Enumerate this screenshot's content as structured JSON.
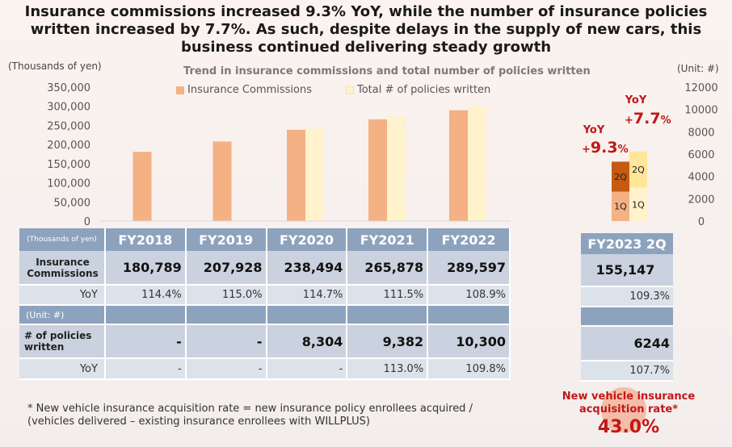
{
  "title_lines": [
    "Insurance commissions increased 9.3% YoY, while the number of insurance policies",
    "written increased by 7.7%. As such, despite delays in the supply of new cars, this",
    "business continued delivering steady growth"
  ],
  "left_axis_unit": "(Thousands of yen)",
  "right_axis_unit": "(Unit: #)",
  "chart_data": {
    "type": "bar",
    "title": "Trend in insurance commissions and total number of policies written",
    "categories": [
      "FY2018",
      "FY2019",
      "FY2020",
      "FY2021",
      "FY2022"
    ],
    "series": [
      {
        "name": "Insurance Commissions",
        "axis": "left",
        "color": "#f4b183",
        "values": [
          180789,
          207928,
          238494,
          265878,
          289597
        ]
      },
      {
        "name": "Total # of policies written",
        "axis": "right",
        "color": "#fff2cc",
        "values": [
          null,
          null,
          8304,
          9382,
          10300
        ]
      }
    ],
    "left_ylim": [
      0,
      350000
    ],
    "left_ticks": [
      "350,000",
      "300,000",
      "250,000",
      "200,000",
      "150,000",
      "100,000",
      "50,000",
      "0"
    ],
    "right_ylim": [
      0,
      12000
    ],
    "right_ticks": [
      "12000",
      "10000",
      "8000",
      "6000",
      "4000",
      "2000",
      "0"
    ],
    "fy2023_2q": {
      "commissions_stack": [
        {
          "label": "1Q",
          "value": 77000,
          "color": "#f4b183"
        },
        {
          "label": "2Q",
          "value": 78147,
          "color": "#c55a11"
        }
      ],
      "policies_stack": [
        {
          "label": "1Q",
          "value": 3000,
          "color": "#fff2cc"
        },
        {
          "label": "2Q",
          "value": 3244,
          "color": "#ffe699"
        }
      ],
      "yoy_commissions": "9.3",
      "yoy_policies": "7.7"
    }
  },
  "yoy_label": "YoY",
  "yoy_prefix": "+",
  "pct": "%",
  "table": {
    "header_unit": "(Thousands of yen)",
    "years": [
      "FY2018",
      "FY2019",
      "FY2020",
      "FY2021",
      "FY2022"
    ],
    "commissions_label": "Insurance Commissions",
    "commissions": [
      "180,789",
      "207,928",
      "238,494",
      "265,878",
      "289,597"
    ],
    "yoy_label": "YoY",
    "commissions_yoy": [
      "114.4%",
      "115.0%",
      "114.7%",
      "111.5%",
      "108.9%"
    ],
    "unit_row": "(Unit: #)",
    "policies_label": "# of policies written",
    "policies": [
      "-",
      "-",
      "8,304",
      "9,382",
      "10,300"
    ],
    "policies_yoy": [
      "-",
      "-",
      "-",
      "113.0%",
      "109.8%"
    ]
  },
  "fy2023": {
    "header": "FY2023 2Q",
    "commissions": "155,147",
    "commissions_yoy": "109.3%",
    "policies": "6244",
    "policies_yoy": "107.7%"
  },
  "note_lines": [
    "* New vehicle insurance acquisition rate = new insurance policy enrollees acquired /",
    "(vehicles delivered – existing insurance enrollees with WILLPLUS)"
  ],
  "acquisition": {
    "label_lines": [
      "New vehicle insurance",
      "acquisition rate*"
    ],
    "value": "43.0%"
  }
}
